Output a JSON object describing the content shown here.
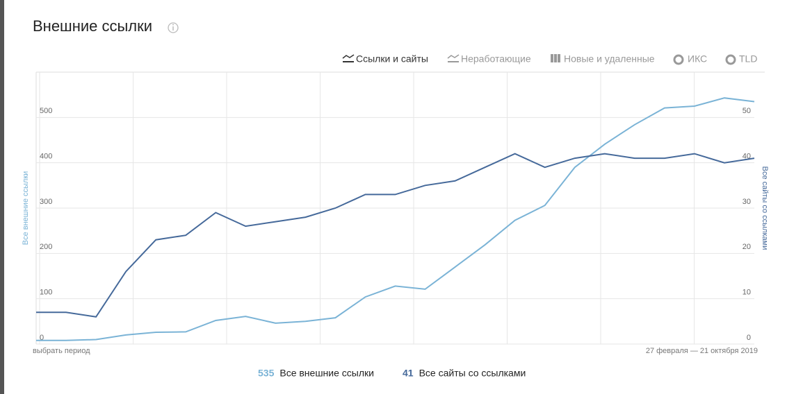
{
  "header": {
    "title": "Внешние ссылки",
    "tabs": [
      "Ссылки и сайты",
      "Неработающие",
      "Новые и удаленные",
      "ИКС",
      "TLD"
    ]
  },
  "chart_data": {
    "type": "line",
    "categories": [
      null,
      null,
      null,
      null,
      null,
      null,
      null,
      null,
      null,
      null,
      null,
      null,
      null,
      null,
      null,
      null,
      null,
      null,
      null,
      null,
      null,
      null,
      null,
      null,
      null
    ],
    "series": [
      {
        "name": "Все внешние ссылки",
        "color": "#7ab3d6",
        "axis": "y",
        "values": [
          8,
          8,
          10,
          20,
          26,
          27,
          52,
          61,
          46,
          50,
          58,
          104,
          128,
          121,
          170,
          219,
          273,
          306,
          390,
          441,
          484,
          521,
          525,
          543,
          535
        ]
      },
      {
        "name": "Все сайты со ссылками",
        "color": "#45699a",
        "axis": "y2",
        "values": [
          7,
          7,
          6,
          16,
          23,
          24,
          29,
          26,
          27,
          28,
          30,
          33,
          33,
          35,
          36,
          39,
          42,
          39,
          41,
          42,
          41,
          41,
          42,
          40,
          41
        ]
      }
    ],
    "ylabel": "Все внешние ссылки",
    "y2label": "Все сайты со ссылками",
    "ylim": [
      0,
      600
    ],
    "yticks": [
      0,
      100,
      200,
      300,
      400,
      500
    ],
    "y2lim": [
      0,
      60
    ],
    "y2ticks": [
      0,
      10,
      20,
      30,
      40,
      50
    ],
    "grid": true
  },
  "footer": {
    "period_link": "выбрать период",
    "date_range": "27 февраля — 21 октября 2019"
  }
}
